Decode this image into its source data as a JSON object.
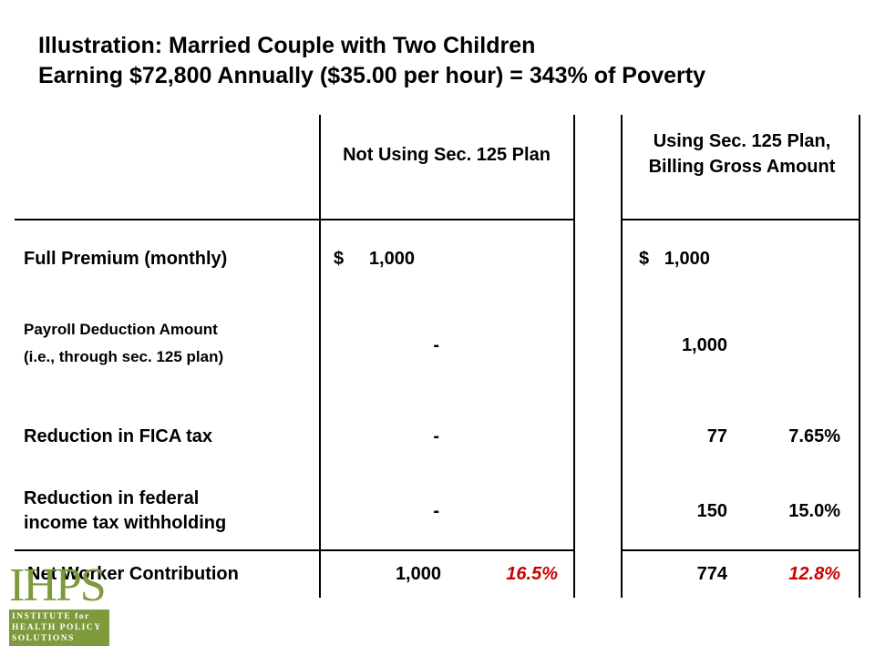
{
  "title": {
    "line1": "Illustration:  Married Couple with Two Children",
    "line2": "Earning $72,800 Annually ($35.00 per hour) = 343% of Poverty"
  },
  "columns": {
    "not_using": "Not Using Sec. 125 Plan",
    "using": "Using Sec. 125 Plan, Billing Gross Amount"
  },
  "rows": {
    "full_premium": {
      "label": "Full Premium (monthly)",
      "not_using": "$     1,000",
      "using": "$   1,000"
    },
    "payroll": {
      "label_1": "Payroll Deduction Amount",
      "label_2": "(i.e., through sec. 125 plan)",
      "not_using": "-",
      "using": "1,000"
    },
    "fica": {
      "label": "Reduction in FICA tax",
      "not_using": "-",
      "using": "77",
      "using_pct": "7.65%"
    },
    "federal": {
      "label_1": "Reduction in federal",
      "label_2": "income tax withholding",
      "not_using": "-",
      "using": "150",
      "using_pct": "15.0%"
    },
    "net": {
      "label": "Net Worker Contribution",
      "not_using": "1,000",
      "not_using_pct": "16.5%",
      "using": "774",
      "using_pct": "12.8%"
    }
  },
  "logo": {
    "mark": "IHPS",
    "sub_1": "INSTITUTE for",
    "sub_2": "HEALTH POLICY",
    "sub_3": "SOLUTIONS"
  },
  "colors": {
    "highlight_red": "#cc0000",
    "logo_green": "#7d9a3c"
  }
}
